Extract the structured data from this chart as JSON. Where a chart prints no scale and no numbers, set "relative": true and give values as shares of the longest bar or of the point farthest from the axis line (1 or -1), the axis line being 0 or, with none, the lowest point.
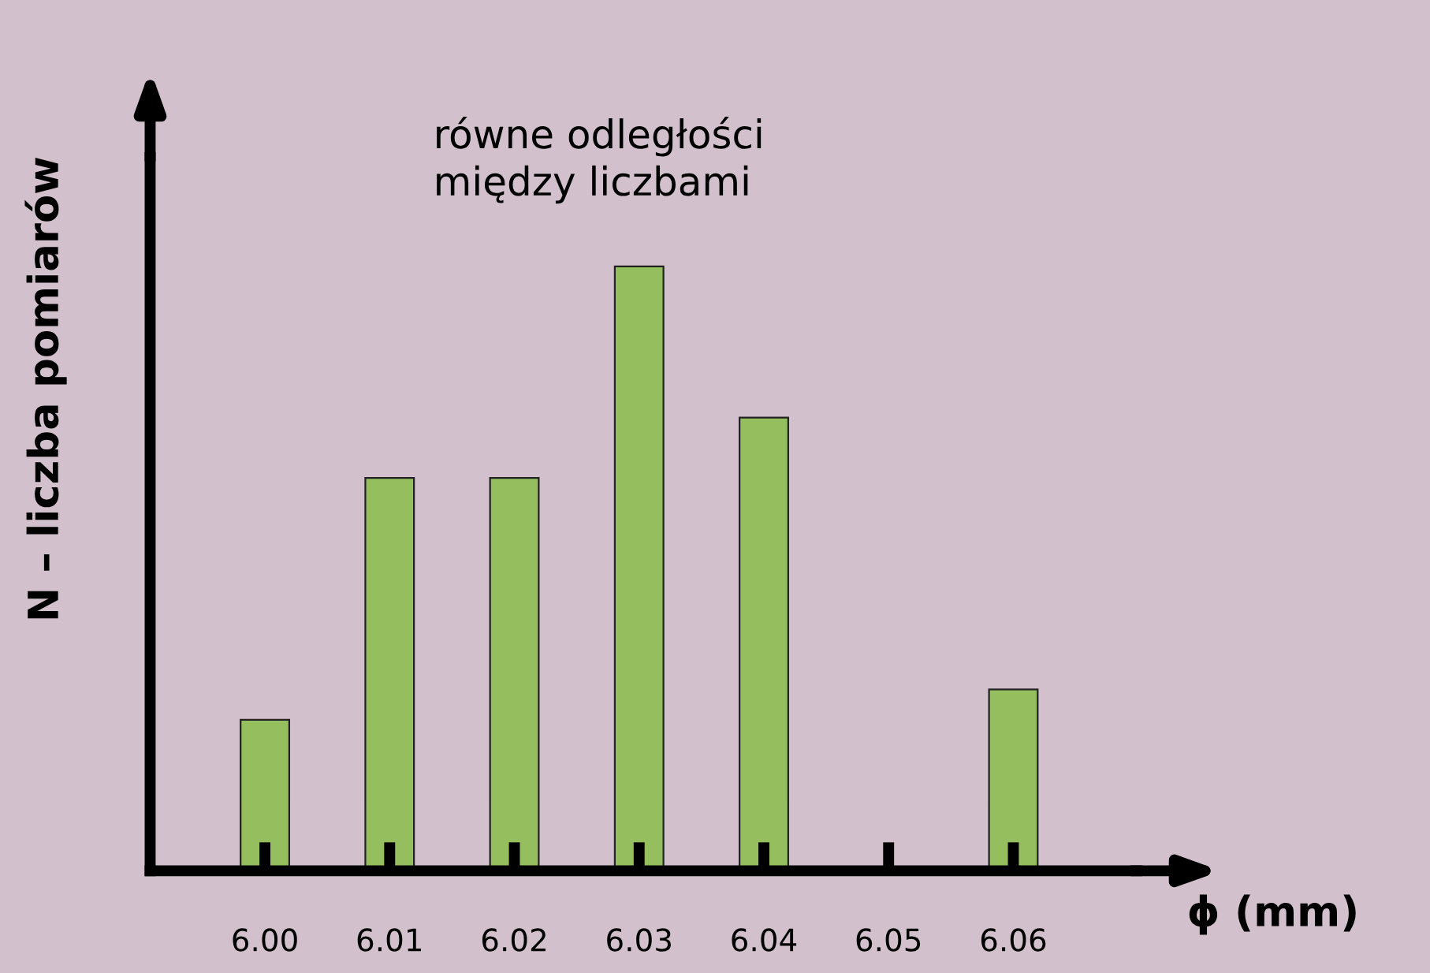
{
  "chart_data": {
    "type": "bar",
    "categories": [
      "6.00",
      "6.01",
      "6.02",
      "6.03",
      "6.04",
      "6.05",
      "6.06"
    ],
    "values": [
      0.25,
      0.65,
      0.65,
      1,
      0.75,
      0,
      0.3
    ],
    "color": "#95bf5f",
    "relative": true,
    "xlabel": "ϕ (mm)",
    "ylabel": "N – liczba pomiarów",
    "annotations": [
      "równe odległości\nmiędzy liczbami"
    ],
    "grid": false,
    "legend": false
  }
}
